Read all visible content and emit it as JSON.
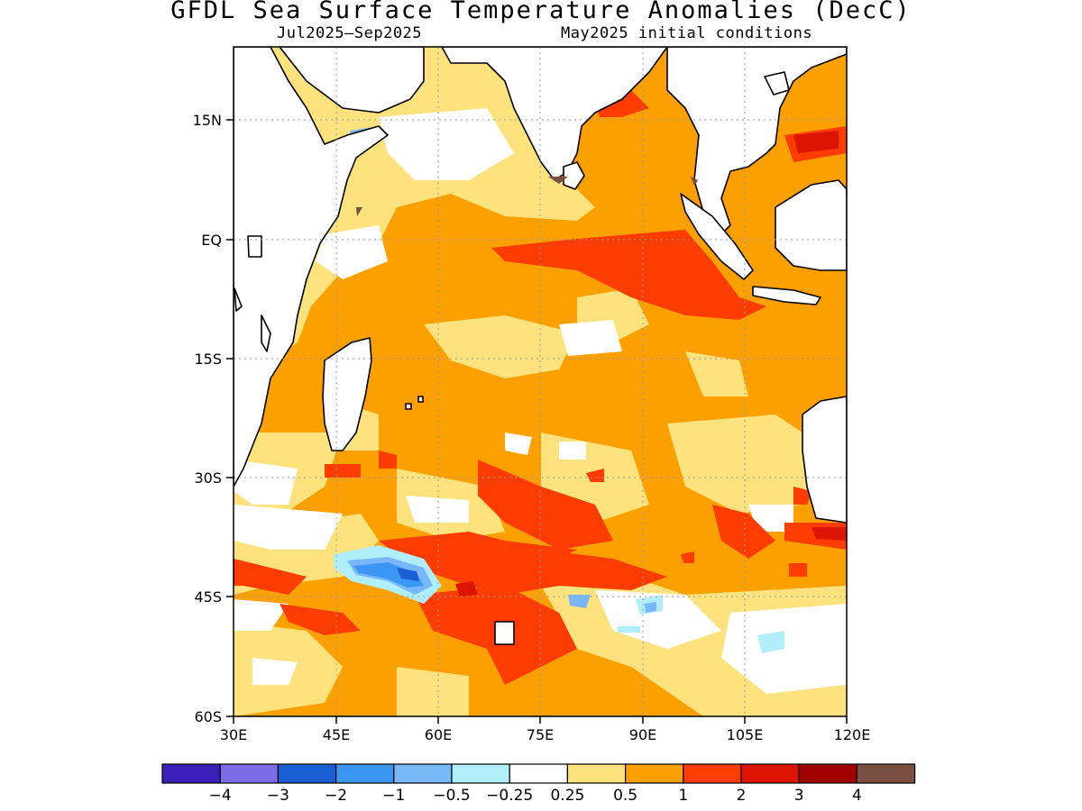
{
  "title": "GFDL Sea Surface Temperature Anomalies (DecC)",
  "subtitle_left": "Jul2025–Sep2025",
  "subtitle_right": "May2025 initial conditions",
  "map": {
    "lon_ticks": [
      "30E",
      "45E",
      "60E",
      "75E",
      "90E",
      "105E",
      "120E"
    ],
    "lat_ticks": [
      "15N",
      "EQ",
      "15S",
      "30S",
      "45S",
      "60S"
    ],
    "ocean_base_color": "#fca000",
    "land_color": "#ffffff"
  },
  "colorbar": {
    "colors": [
      "#3a20b8",
      "#7c6ce8",
      "#1a5ed4",
      "#3c96f4",
      "#78b8f8",
      "#b0eefc",
      "#ffffff",
      "#fee27e",
      "#fca000",
      "#fc3c00",
      "#dc1400",
      "#a00000",
      "#7a4e40"
    ],
    "labels": [
      "−4",
      "−3",
      "−2",
      "−1",
      "−0.5",
      "−0.25",
      "0.25",
      "0.5",
      "1",
      "2",
      "3",
      "4"
    ]
  }
}
